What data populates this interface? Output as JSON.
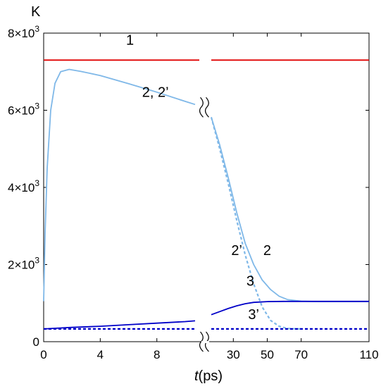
{
  "chart_data": {
    "type": "line",
    "ylabel": "K",
    "xlabel_italic": "t",
    "xlabel_rest": "(ps)",
    "x_ticks_left": [
      "0",
      "4",
      "8"
    ],
    "x_ticks_left_values": [
      0,
      4,
      8
    ],
    "x_ticks_right": [
      "30",
      "50",
      "70",
      "110"
    ],
    "x_ticks_right_values": [
      30,
      50,
      70,
      110
    ],
    "x_left_range": [
      0,
      11
    ],
    "x_right_range": [
      17,
      110
    ],
    "y_ticks": [
      {
        "value": 0,
        "mantissa": "0",
        "exp": ""
      },
      {
        "value": 2000,
        "mantissa": "2×10",
        "exp": "3"
      },
      {
        "value": 4000,
        "mantissa": "4×10",
        "exp": "3"
      },
      {
        "value": 6000,
        "mantissa": "6×10",
        "exp": "3"
      },
      {
        "value": 8000,
        "mantissa": "8×10",
        "exp": "3"
      }
    ],
    "ylim": [
      0,
      8000
    ],
    "axis_break": true,
    "series": [
      {
        "label": "1",
        "color": "#e00000",
        "style": "solid",
        "left": [
          [
            0,
            7300
          ],
          [
            11,
            7300
          ]
        ],
        "right": [
          [
            17,
            7300
          ],
          [
            110,
            7300
          ]
        ]
      },
      {
        "label": "2",
        "color": "#7fb8e8",
        "style": "solid",
        "left": [
          [
            0,
            1050
          ],
          [
            0.1,
            2800
          ],
          [
            0.25,
            4500
          ],
          [
            0.5,
            6000
          ],
          [
            0.8,
            6700
          ],
          [
            1.2,
            7000
          ],
          [
            1.8,
            7060
          ],
          [
            2.6,
            7010
          ],
          [
            4,
            6900
          ],
          [
            6,
            6690
          ],
          [
            8,
            6470
          ],
          [
            10,
            6230
          ],
          [
            10.7,
            6150
          ]
        ],
        "right": [
          [
            17,
            5820
          ],
          [
            22,
            5100
          ],
          [
            27,
            4250
          ],
          [
            32,
            3350
          ],
          [
            37,
            2550
          ],
          [
            42,
            2000
          ],
          [
            47,
            1600
          ],
          [
            52,
            1350
          ],
          [
            57,
            1180
          ],
          [
            62,
            1090
          ],
          [
            70,
            1050
          ],
          [
            80,
            1040
          ],
          [
            95,
            1040
          ],
          [
            110,
            1040
          ]
        ]
      },
      {
        "label": "2’",
        "color": "#7fb8e8",
        "style": "dashed",
        "left": [],
        "right": [
          [
            17,
            5820
          ],
          [
            22,
            5000
          ],
          [
            27,
            4100
          ],
          [
            32,
            3150
          ],
          [
            37,
            2250
          ],
          [
            42,
            1500
          ],
          [
            47,
            900
          ],
          [
            52,
            550
          ],
          [
            57,
            400
          ],
          [
            62,
            340
          ],
          [
            70,
            330
          ]
        ]
      },
      {
        "label": "3",
        "color": "#0000c8",
        "style": "solid",
        "left": [
          [
            0,
            330
          ],
          [
            2,
            370
          ],
          [
            4,
            400
          ],
          [
            6,
            440
          ],
          [
            8,
            480
          ],
          [
            10,
            520
          ],
          [
            10.7,
            540
          ]
        ],
        "right": [
          [
            17,
            700
          ],
          [
            22,
            780
          ],
          [
            27,
            860
          ],
          [
            32,
            930
          ],
          [
            37,
            985
          ],
          [
            42,
            1020
          ],
          [
            50,
            1040
          ],
          [
            60,
            1045
          ],
          [
            80,
            1045
          ],
          [
            110,
            1045
          ]
        ]
      },
      {
        "label": "3’",
        "color": "#0000c8",
        "style": "dashed",
        "left": [
          [
            0,
            330
          ],
          [
            10.7,
            330
          ]
        ],
        "right": [
          [
            17,
            330
          ],
          [
            110,
            330
          ]
        ]
      }
    ],
    "annotations": [
      {
        "text": "1",
        "x_side": "left",
        "x": 6.1,
        "y": 7700
      },
      {
        "text": "2, 2’",
        "x_side": "left",
        "x": 7.9,
        "y": 6350
      },
      {
        "text": "2’",
        "x_side": "right",
        "x": 32,
        "y": 2250
      },
      {
        "text": "2",
        "x_side": "right",
        "x": 50,
        "y": 2250
      },
      {
        "text": "3",
        "x_side": "right",
        "x": 40,
        "y": 1450
      },
      {
        "text": "3’",
        "x_side": "right",
        "x": 42,
        "y": 580
      }
    ]
  }
}
